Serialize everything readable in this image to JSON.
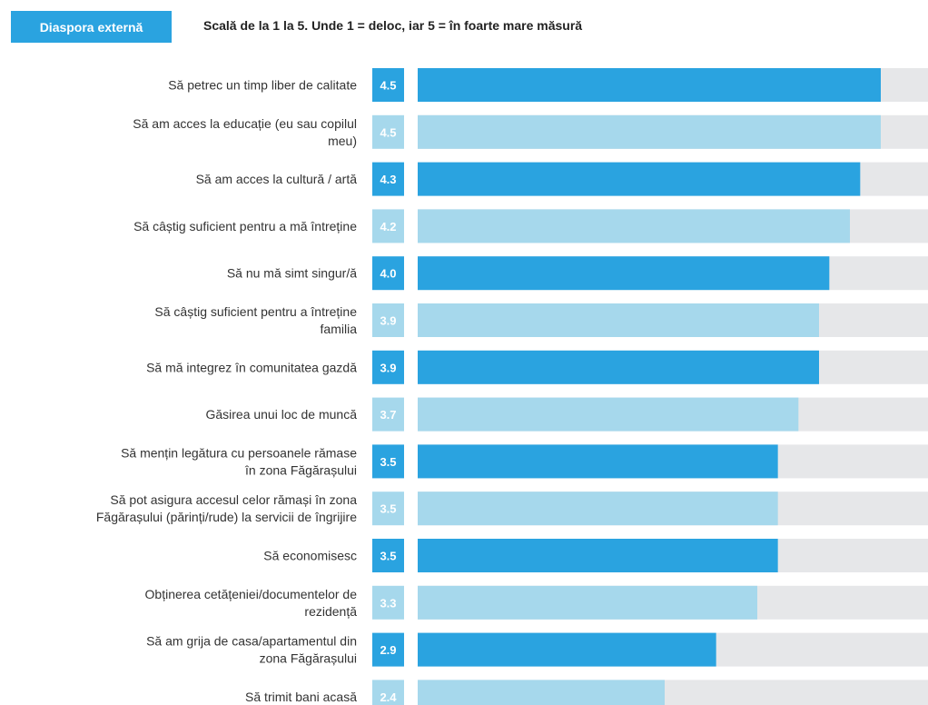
{
  "header": {
    "tag": "Diaspora externă",
    "scale_note": "Scală de la 1 la 5. Unde 1 = deloc, iar 5 = în foarte mare măsură"
  },
  "colors": {
    "dark": "#2aa3e0",
    "light": "#a6d8ec",
    "track": "#e6e7e9"
  },
  "chart_data": {
    "type": "bar",
    "orientation": "horizontal",
    "xlim": [
      0,
      5
    ],
    "categories": [
      [
        "Să petrec un timp liber de calitate"
      ],
      [
        "Să am acces la educație (eu sau copilul",
        "meu)"
      ],
      [
        "Să am acces la cultură / artă"
      ],
      [
        "Să câștig suficient pentru a mă întreține"
      ],
      [
        "Să nu mă simt singur/ă"
      ],
      [
        "Să câștig suficient pentru a întreține",
        "familia"
      ],
      [
        "Să mă integrez în comunitatea gazdă"
      ],
      [
        "Găsirea unui loc de muncă"
      ],
      [
        "Să mențin legătura cu persoanele rămase",
        "în zona Făgărașului"
      ],
      [
        "Să pot asigura accesul celor rămași în zona",
        "Făgărașului (părinți/rude) la servicii de îngrijire"
      ],
      [
        "Să economisesc"
      ],
      [
        "Obținerea cetățeniei/documentelor de",
        "rezidență"
      ],
      [
        "Să am grija de casa/apartamentul din",
        "zona Făgărașului"
      ],
      [
        "Să trimit bani acasă"
      ]
    ],
    "values": [
      4.5,
      4.5,
      4.3,
      4.2,
      4.0,
      3.9,
      3.9,
      3.7,
      3.5,
      3.5,
      3.5,
      3.3,
      2.9,
      2.4
    ],
    "value_labels": [
      "4.5",
      "4.5",
      "4.3",
      "4.2",
      "4.0",
      "3.9",
      "3.9",
      "3.7",
      "3.5",
      "3.5",
      "3.5",
      "3.3",
      "2.9",
      "2.4"
    ],
    "shade": [
      "dark",
      "light",
      "dark",
      "light",
      "dark",
      "light",
      "dark",
      "light",
      "dark",
      "light",
      "dark",
      "light",
      "dark",
      "light"
    ]
  }
}
